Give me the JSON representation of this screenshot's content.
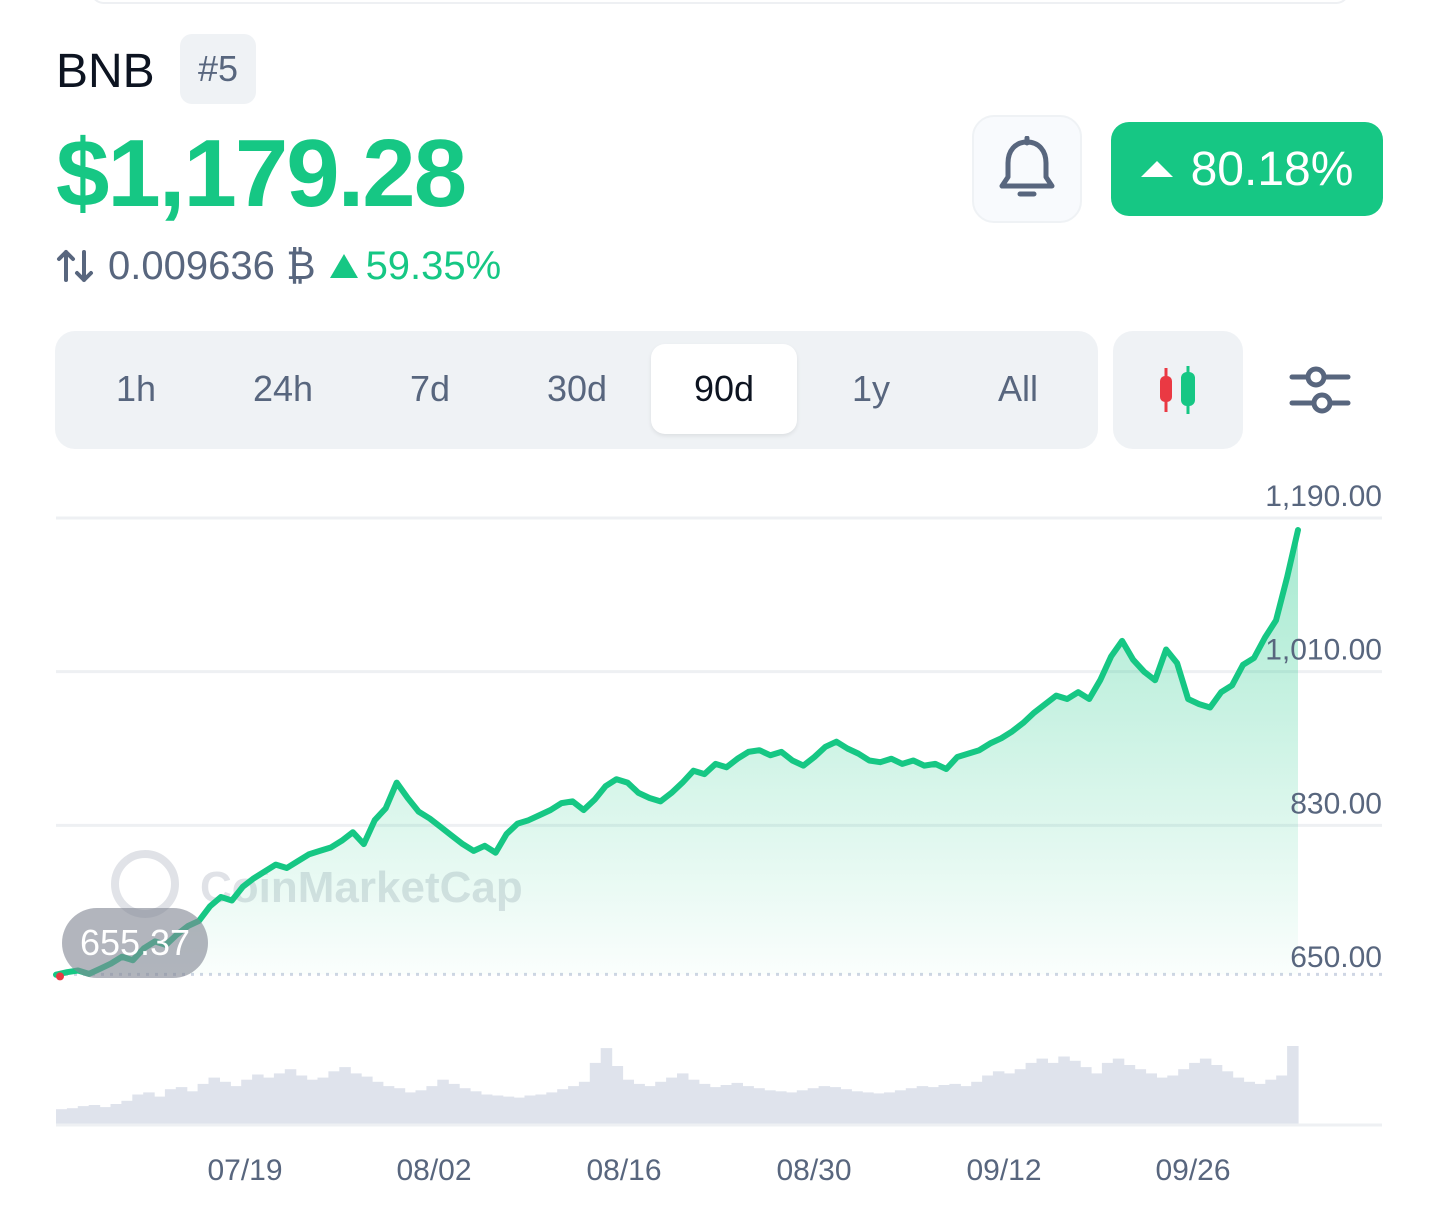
{
  "coin": {
    "name": "BNB",
    "rank": "#5"
  },
  "price": {
    "usd": "$1,179.28",
    "btc": "0.009636 ₿",
    "btc_change": "59.35%",
    "change_badge": "80.18%"
  },
  "icons": {
    "swap": "swap-arrows-icon",
    "bell": "bell-icon",
    "candle": "candlestick-icon",
    "settings": "sliders-icon",
    "arrow": "triangle-up-icon"
  },
  "colors": {
    "up": "#16c784",
    "down": "#ea3943",
    "text": "#0d1421",
    "muted": "#58667e",
    "tab_bg": "#eff2f5"
  },
  "range_tabs": [
    {
      "label": "1h",
      "active": false
    },
    {
      "label": "24h",
      "active": false
    },
    {
      "label": "7d",
      "active": false
    },
    {
      "label": "30d",
      "active": false
    },
    {
      "label": "90d",
      "active": true
    },
    {
      "label": "1y",
      "active": false
    },
    {
      "label": "All",
      "active": false
    }
  ],
  "watermark": "CoinMarketCap",
  "chart_data": {
    "type": "area",
    "start_price_label": "655.37",
    "y_ticks": [
      "1,190.00",
      "1,010.00",
      "830.00",
      "650.00"
    ],
    "ylim": [
      650,
      1190
    ],
    "x_ticks": [
      "07/19",
      "08/02",
      "08/16",
      "08/30",
      "09/12",
      "09/26"
    ],
    "baseline": 655.37,
    "series": [
      {
        "values": [
          655,
          658,
          660,
          656,
          662,
          668,
          676,
          672,
          686,
          694,
          690,
          702,
          712,
          718,
          735,
          746,
          742,
          758,
          768,
          776,
          784,
          780,
          788,
          796,
          800,
          804,
          812,
          822,
          808,
          836,
          850,
          880,
          862,
          846,
          838,
          828,
          818,
          808,
          800,
          806,
          798,
          820,
          832,
          836,
          842,
          848,
          856,
          858,
          848,
          860,
          876,
          884,
          880,
          868,
          862,
          858,
          868,
          880,
          894,
          890,
          902,
          898,
          908,
          916,
          918,
          912,
          916,
          906,
          900,
          910,
          922,
          928,
          920,
          914,
          906,
          904,
          908,
          902,
          906,
          900,
          902,
          896,
          910,
          914,
          918,
          926,
          932,
          940,
          950,
          962,
          972,
          982,
          978,
          986,
          978,
          1000,
          1028,
          1046,
          1024,
          1010,
          1000,
          1036,
          1020,
          978,
          972,
          968,
          986,
          994,
          1018,
          1026,
          1050,
          1070,
          1120,
          1176
        ]
      }
    ],
    "volume": [
      14,
      15,
      17,
      18,
      16,
      19,
      22,
      28,
      30,
      26,
      33,
      35,
      31,
      38,
      44,
      40,
      36,
      42,
      47,
      44,
      48,
      52,
      46,
      42,
      44,
      50,
      54,
      48,
      45,
      40,
      36,
      34,
      30,
      32,
      36,
      42,
      38,
      34,
      31,
      28,
      27,
      26,
      25,
      27,
      28,
      30,
      33,
      36,
      40,
      58,
      72,
      55,
      42,
      38,
      36,
      40,
      44,
      48,
      42,
      38,
      35,
      37,
      39,
      36,
      34,
      32,
      31,
      30,
      32,
      34,
      36,
      35,
      33,
      31,
      30,
      29,
      30,
      32,
      34,
      36,
      35,
      37,
      38,
      36,
      40,
      46,
      50,
      48,
      52,
      58,
      62,
      58,
      64,
      60,
      54,
      48,
      58,
      62,
      56,
      52,
      48,
      44,
      46,
      52,
      58,
      62,
      56,
      50,
      44,
      40,
      38,
      42,
      46,
      74
    ]
  }
}
